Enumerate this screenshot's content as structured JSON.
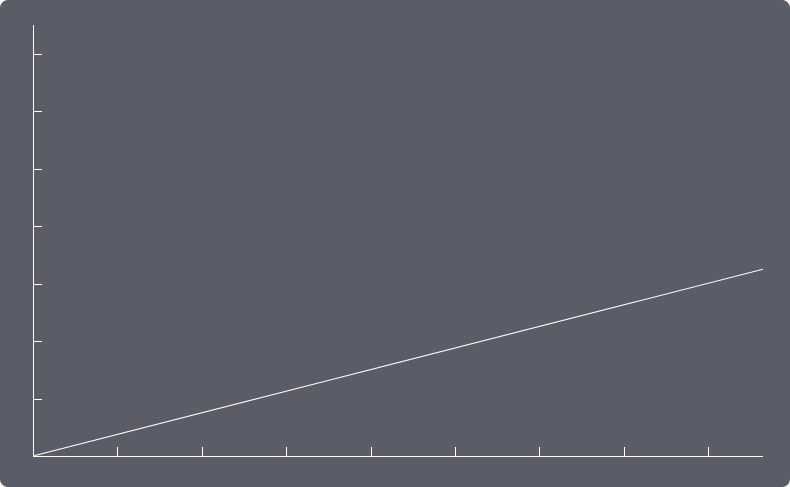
{
  "chart_data": {
    "type": "line",
    "title": "",
    "xlabel": "",
    "ylabel": "",
    "grid": false,
    "xlim": [
      0,
      8.65
    ],
    "ylim": [
      0,
      7.5
    ],
    "x_ticks": [
      1,
      2,
      3,
      4,
      5,
      6,
      7,
      8
    ],
    "y_ticks": [
      1,
      2,
      3,
      4,
      5,
      6,
      7
    ],
    "tick_labels_shown": false,
    "series": [
      {
        "x": [
          0,
          8.65
        ],
        "y": [
          0,
          3.25
        ]
      }
    ]
  },
  "colors": {
    "background": "#5a5c66",
    "foreground": "#ffffff"
  }
}
